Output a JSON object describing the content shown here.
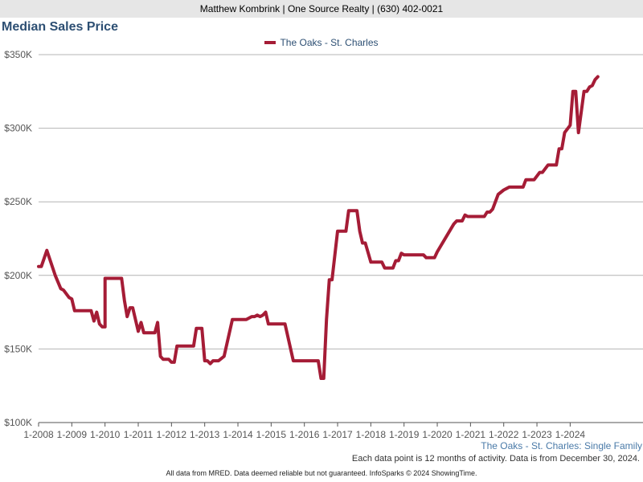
{
  "header": {
    "text": "Matthew Kombrink | One Source Realty | (630) 402-0021"
  },
  "subject_label": "The Oaks - St. Charles: Single Family",
  "note": "Each data point is 12 months of activity. Data is from December 30, 2024.",
  "footer": "All data from MRED. Data deemed reliable but not guaranteed. InfoSparks © 2024 ShowingTime.",
  "colors": {
    "series": "#a51c36",
    "title": "#2d4f73",
    "grid": "#b4b4b4",
    "axis_text": "#555555"
  },
  "chart_data": {
    "type": "line",
    "title": "Median Sales Price",
    "xlabel": "",
    "ylabel": "",
    "ylim": [
      100000,
      350000
    ],
    "xlim": [
      "2008-01",
      "2024-11"
    ],
    "grid": true,
    "legend_placement": "top-center",
    "y_ticks": [
      {
        "value": 100000,
        "label": "$100K"
      },
      {
        "value": 150000,
        "label": "$150K"
      },
      {
        "value": 200000,
        "label": "$200K"
      },
      {
        "value": 250000,
        "label": "$250K"
      },
      {
        "value": 300000,
        "label": "$300K"
      },
      {
        "value": 350000,
        "label": "$350K"
      }
    ],
    "x_ticks": [
      {
        "value": "2008-01",
        "label": "1-2008"
      },
      {
        "value": "2009-01",
        "label": "1-2009"
      },
      {
        "value": "2010-01",
        "label": "1-2010"
      },
      {
        "value": "2011-01",
        "label": "1-2011"
      },
      {
        "value": "2012-01",
        "label": "1-2012"
      },
      {
        "value": "2013-01",
        "label": "1-2013"
      },
      {
        "value": "2014-01",
        "label": "1-2014"
      },
      {
        "value": "2015-01",
        "label": "1-2015"
      },
      {
        "value": "2016-01",
        "label": "1-2016"
      },
      {
        "value": "2017-01",
        "label": "1-2017"
      },
      {
        "value": "2018-01",
        "label": "1-2018"
      },
      {
        "value": "2019-01",
        "label": "1-2019"
      },
      {
        "value": "2020-01",
        "label": "1-2020"
      },
      {
        "value": "2021-01",
        "label": "1-2021"
      },
      {
        "value": "2022-01",
        "label": "1-2022"
      },
      {
        "value": "2023-01",
        "label": "1-2023"
      },
      {
        "value": "2024-01",
        "label": "1-2024"
      }
    ],
    "series": [
      {
        "name": "The Oaks - St. Charles",
        "points": [
          [
            "2008-01",
            206000
          ],
          [
            "2008-02",
            206000
          ],
          [
            "2008-04",
            217000
          ],
          [
            "2008-07",
            200000
          ],
          [
            "2008-09",
            191000
          ],
          [
            "2008-10",
            190000
          ],
          [
            "2008-12",
            185000
          ],
          [
            "2009-01",
            184000
          ],
          [
            "2009-02",
            176000
          ],
          [
            "2009-08",
            176000
          ],
          [
            "2009-09",
            169000
          ],
          [
            "2009-10",
            175000
          ],
          [
            "2009-11",
            167000
          ],
          [
            "2009-12",
            165000
          ],
          [
            "2010-01",
            165000
          ],
          [
            "2010-01",
            198000
          ],
          [
            "2010-07",
            198000
          ],
          [
            "2010-08",
            183000
          ],
          [
            "2010-09",
            172000
          ],
          [
            "2010-10",
            178000
          ],
          [
            "2010-11",
            178000
          ],
          [
            "2011-01",
            162000
          ],
          [
            "2011-02",
            168000
          ],
          [
            "2011-03",
            161000
          ],
          [
            "2011-07",
            161000
          ],
          [
            "2011-08",
            168000
          ],
          [
            "2011-09",
            145000
          ],
          [
            "2011-10",
            143000
          ],
          [
            "2011-12",
            143000
          ],
          [
            "2012-01",
            141000
          ],
          [
            "2012-02",
            141000
          ],
          [
            "2012-03",
            152000
          ],
          [
            "2012-08",
            152000
          ],
          [
            "2012-09",
            152000
          ],
          [
            "2012-10",
            164000
          ],
          [
            "2012-12",
            164000
          ],
          [
            "2013-01",
            142000
          ],
          [
            "2013-02",
            142000
          ],
          [
            "2013-03",
            140000
          ],
          [
            "2013-04",
            142000
          ],
          [
            "2013-06",
            142000
          ],
          [
            "2013-08",
            145000
          ],
          [
            "2013-11",
            170000
          ],
          [
            "2014-04",
            170000
          ],
          [
            "2014-06",
            172000
          ],
          [
            "2014-07",
            172000
          ],
          [
            "2014-08",
            173000
          ],
          [
            "2014-09",
            172000
          ],
          [
            "2014-10",
            173000
          ],
          [
            "2014-11",
            175000
          ],
          [
            "2014-12",
            167000
          ],
          [
            "2015-06",
            167000
          ],
          [
            "2015-09",
            142000
          ],
          [
            "2016-06",
            142000
          ],
          [
            "2016-07",
            130000
          ],
          [
            "2016-08",
            130000
          ],
          [
            "2016-09",
            170000
          ],
          [
            "2016-10",
            197000
          ],
          [
            "2016-11",
            197000
          ],
          [
            "2017-01",
            230000
          ],
          [
            "2017-04",
            230000
          ],
          [
            "2017-05",
            244000
          ],
          [
            "2017-08",
            244000
          ],
          [
            "2017-09",
            230000
          ],
          [
            "2017-10",
            222000
          ],
          [
            "2017-11",
            222000
          ],
          [
            "2018-01",
            209000
          ],
          [
            "2018-05",
            209000
          ],
          [
            "2018-06",
            205000
          ],
          [
            "2018-09",
            205000
          ],
          [
            "2018-10",
            210000
          ],
          [
            "2018-11",
            210000
          ],
          [
            "2018-12",
            215000
          ],
          [
            "2019-01",
            214000
          ],
          [
            "2019-08",
            214000
          ],
          [
            "2019-09",
            212000
          ],
          [
            "2019-12",
            212000
          ],
          [
            "2020-01",
            216000
          ],
          [
            "2020-07",
            235000
          ],
          [
            "2020-08",
            237000
          ],
          [
            "2020-10",
            237000
          ],
          [
            "2020-11",
            241000
          ],
          [
            "2020-12",
            240000
          ],
          [
            "2021-06",
            240000
          ],
          [
            "2021-07",
            243000
          ],
          [
            "2021-08",
            243000
          ],
          [
            "2021-09",
            245000
          ],
          [
            "2021-11",
            255000
          ],
          [
            "2022-01",
            258000
          ],
          [
            "2022-02",
            259000
          ],
          [
            "2022-03",
            260000
          ],
          [
            "2022-08",
            260000
          ],
          [
            "2022-09",
            265000
          ],
          [
            "2022-10",
            265000
          ],
          [
            "2022-12",
            265000
          ],
          [
            "2023-02",
            270000
          ],
          [
            "2023-03",
            270000
          ],
          [
            "2023-05",
            275000
          ],
          [
            "2023-08",
            275000
          ],
          [
            "2023-09",
            286000
          ],
          [
            "2023-10",
            286000
          ],
          [
            "2023-11",
            297000
          ],
          [
            "2024-01",
            302000
          ],
          [
            "2024-02",
            325000
          ],
          [
            "2024-03",
            325000
          ],
          [
            "2024-04",
            297000
          ],
          [
            "2024-06",
            325000
          ],
          [
            "2024-07",
            325000
          ],
          [
            "2024-08",
            328000
          ],
          [
            "2024-09",
            329000
          ],
          [
            "2024-10",
            333000
          ],
          [
            "2024-11",
            335000
          ]
        ]
      }
    ]
  }
}
